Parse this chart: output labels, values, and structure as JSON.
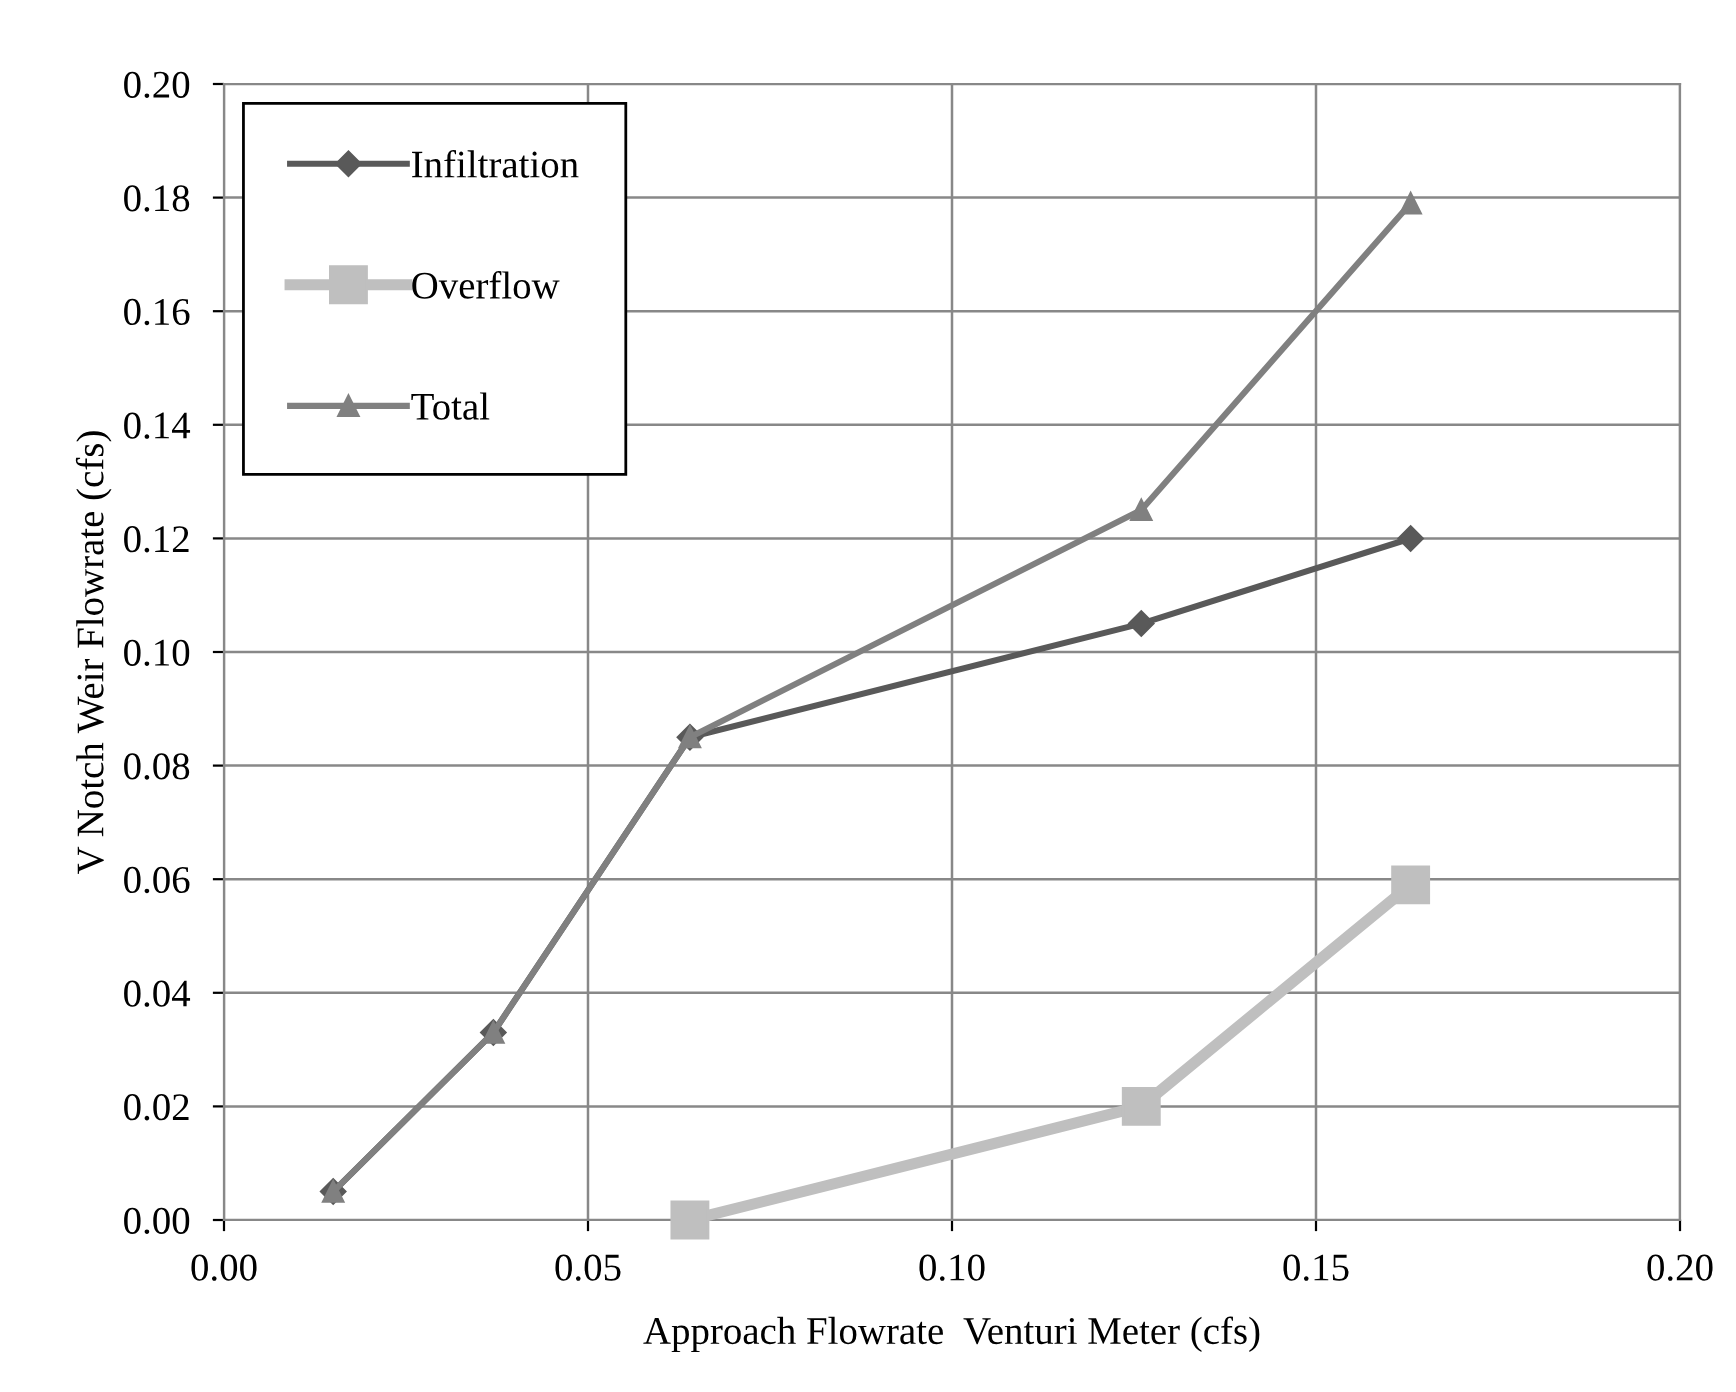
{
  "chart_data": {
    "type": "line",
    "xlabel": "Approach Flowrate  Venturi Meter (cfs)",
    "ylabel": "V Notch Weir Flowrate (cfs)",
    "series": [
      {
        "name": "Infiltration",
        "color": "#595959",
        "marker": "diamond",
        "x": [
          0.015,
          0.037,
          0.064,
          0.126,
          0.163
        ],
        "values": [
          0.005,
          0.033,
          0.085,
          0.105,
          0.12
        ]
      },
      {
        "name": "Overflow",
        "color": "#bfbfbf",
        "marker": "square",
        "x": [
          0.064,
          0.126,
          0.163
        ],
        "values": [
          0.0,
          0.02,
          0.059
        ]
      },
      {
        "name": "Total",
        "color": "#808080",
        "marker": "triangle",
        "x": [
          0.015,
          0.037,
          0.064,
          0.126,
          0.163
        ],
        "values": [
          0.005,
          0.033,
          0.085,
          0.125,
          0.179
        ]
      }
    ],
    "xlim": [
      0,
      0.2
    ],
    "xticks": [
      {
        "value": 0,
        "label": "0.00"
      },
      {
        "value": 0.05,
        "label": "0.05"
      },
      {
        "value": 0.1,
        "label": "0.10"
      },
      {
        "value": 0.15,
        "label": "0.15"
      },
      {
        "value": 0.2,
        "label": "0.20"
      }
    ],
    "ylim": [
      0,
      0.2
    ],
    "yticks": [
      {
        "value": 0,
        "label": "0.00"
      },
      {
        "value": 0.02,
        "label": "0.02"
      },
      {
        "value": 0.04,
        "label": "0.04"
      },
      {
        "value": 0.06,
        "label": "0.06"
      },
      {
        "value": 0.08,
        "label": "0.08"
      },
      {
        "value": 0.1,
        "label": "0.10"
      },
      {
        "value": 0.12,
        "label": "0.12"
      },
      {
        "value": 0.14,
        "label": "0.14"
      },
      {
        "value": 0.16,
        "label": "0.16"
      },
      {
        "value": 0.18,
        "label": "0.18"
      },
      {
        "value": 0.2,
        "label": "0.20"
      }
    ],
    "grid": true,
    "legend": "top left",
    "line_style": "solid"
  }
}
